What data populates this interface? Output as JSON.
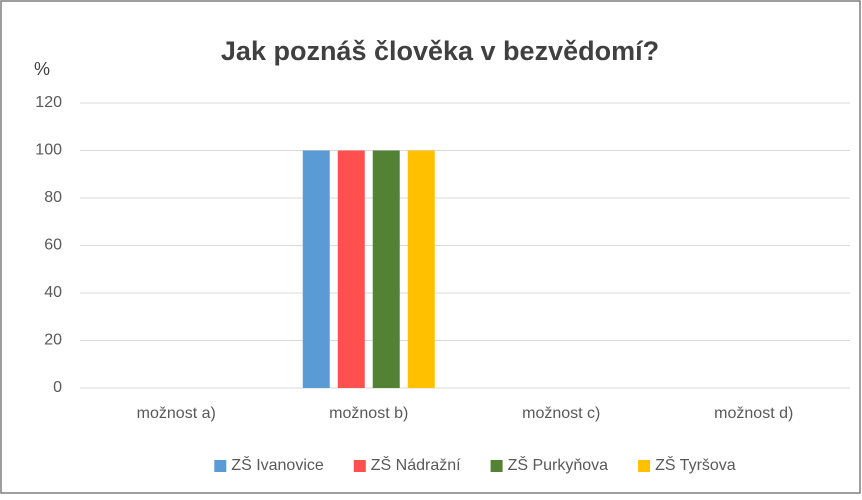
{
  "chart_data": {
    "type": "bar",
    "title": "Jak poznáš člověka v bezvědomí?",
    "y_label": "%",
    "categories": [
      "možnost a)",
      "možnost b)",
      "možnost c)",
      "možnost d)"
    ],
    "series": [
      {
        "name": "ZŠ Ivanovice",
        "color": "#5b9bd5",
        "values": [
          0,
          100,
          0,
          0
        ]
      },
      {
        "name": "ZŠ Nádražní",
        "color": "#ff5050",
        "values": [
          0,
          100,
          0,
          0
        ]
      },
      {
        "name": "ZŠ Purkyňova",
        "color": "#548235",
        "values": [
          0,
          100,
          0,
          0
        ]
      },
      {
        "name": "ZŠ Tyršova",
        "color": "#ffc000",
        "values": [
          0,
          100,
          0,
          0
        ]
      }
    ],
    "ylim": [
      0,
      120
    ],
    "yticks": [
      0,
      20,
      40,
      60,
      80,
      100,
      120
    ],
    "grid": true,
    "legend": "bottom"
  }
}
